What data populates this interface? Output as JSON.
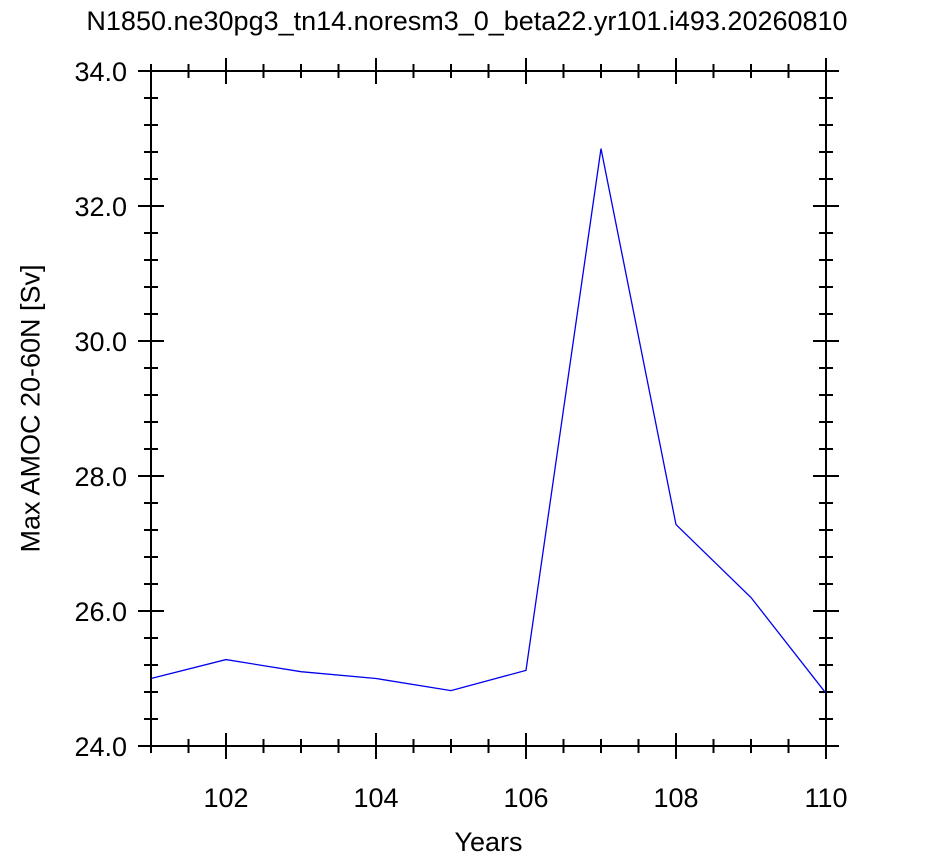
{
  "chart_data": {
    "type": "line",
    "title": "N1850.ne30pg3_tn14.noresm3_0_beta22.yr101.i493.20260810",
    "xlabel": "Years",
    "ylabel": "Max AMOC 20-60N [Sv]",
    "xlim": [
      101,
      110
    ],
    "ylim": [
      24.0,
      34.0
    ],
    "x_ticks": [
      102,
      104,
      106,
      108,
      110
    ],
    "x_tick_labels": [
      "102",
      "104",
      "106",
      "108",
      "110"
    ],
    "x_minor_step": 0.5,
    "y_ticks": [
      24.0,
      26.0,
      28.0,
      30.0,
      32.0,
      34.0
    ],
    "y_tick_labels": [
      "24.0",
      "26.0",
      "28.0",
      "30.0",
      "32.0",
      "34.0"
    ],
    "y_minor_step": 0.4,
    "grid": false,
    "series": [
      {
        "color": "#0000ee",
        "x": [
          101,
          102,
          103,
          104,
          105,
          106,
          107,
          108,
          109,
          110
        ],
        "y": [
          25.0,
          25.28,
          25.1,
          25.0,
          24.82,
          25.12,
          32.85,
          27.28,
          26.2,
          24.78
        ]
      }
    ]
  }
}
